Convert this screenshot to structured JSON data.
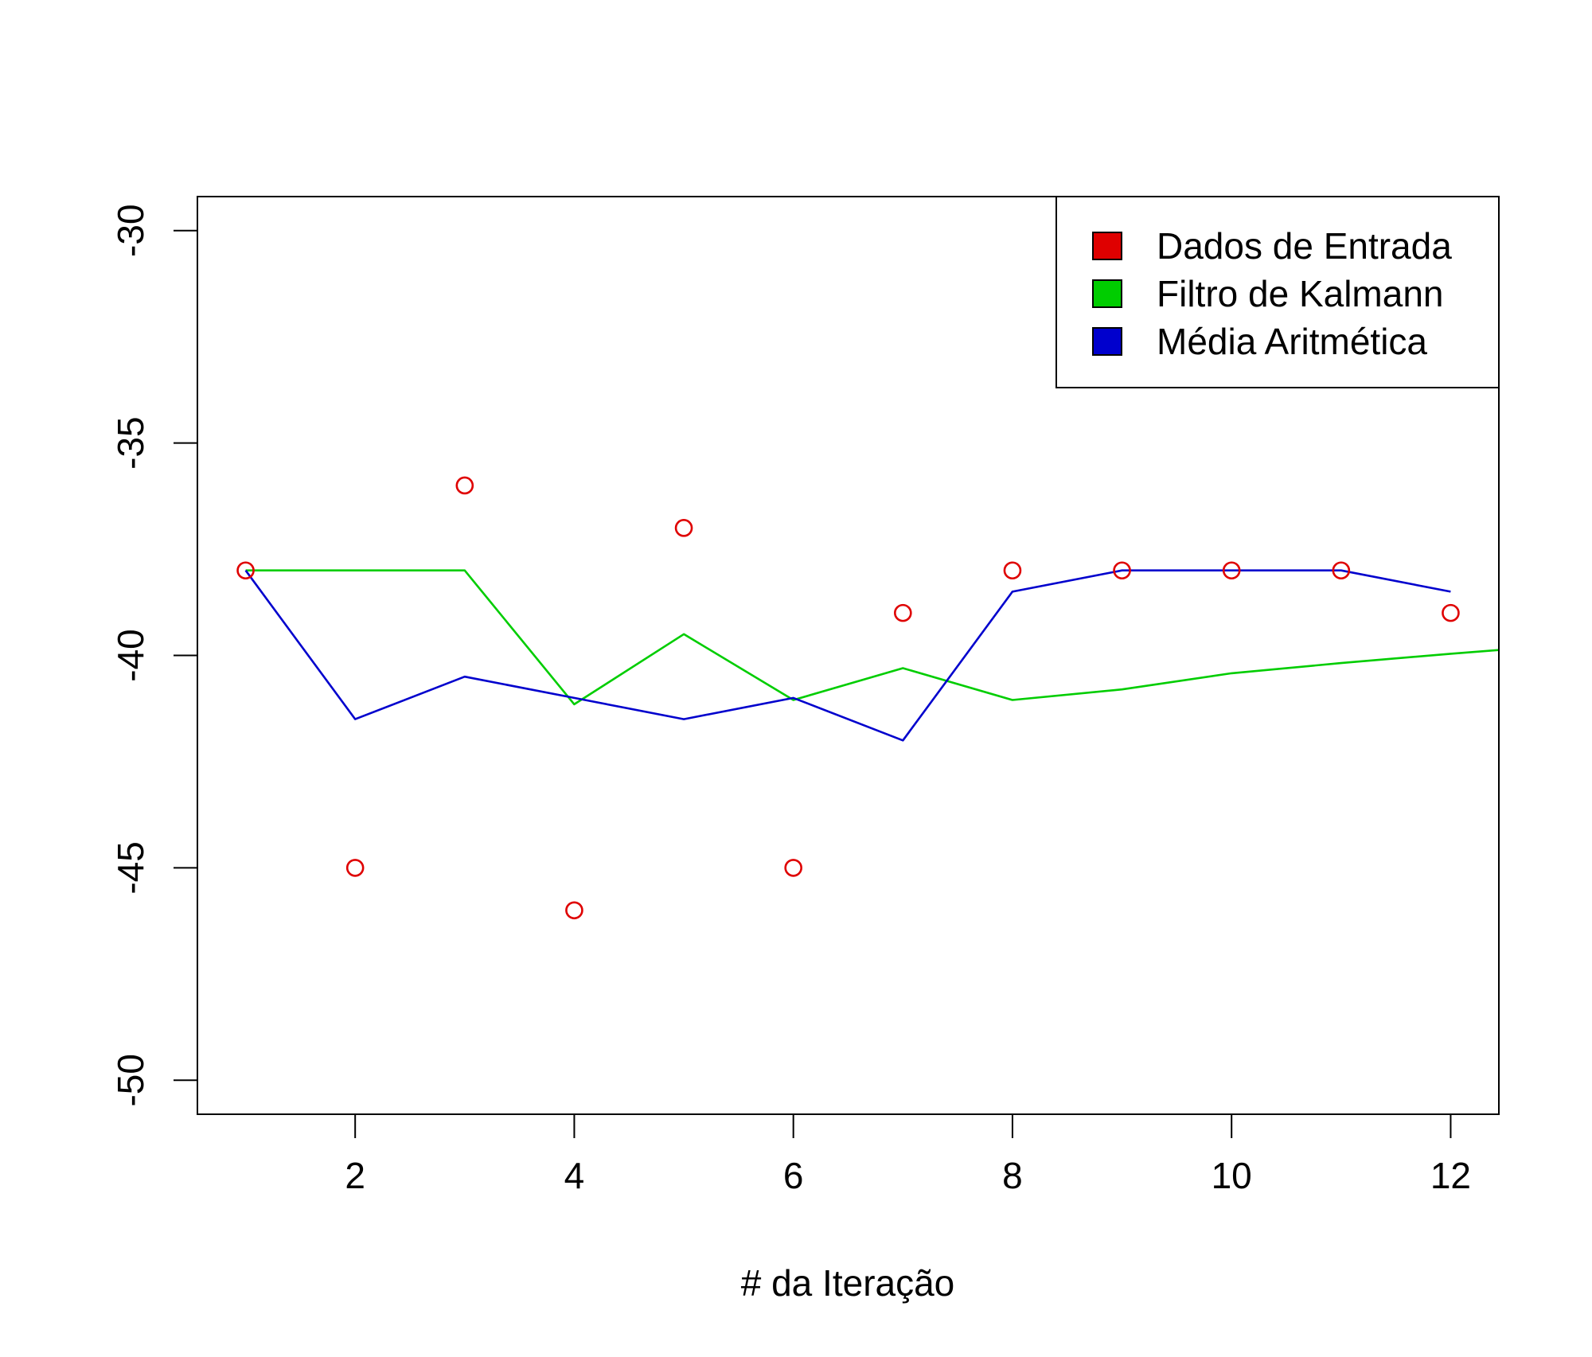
{
  "chart_data": {
    "type": "line",
    "title": "",
    "xlabel": "# da Iteração",
    "ylabel": "",
    "xlim": [
      0.56,
      12.44
    ],
    "ylim": [
      -50.8,
      -29.2
    ],
    "x_ticks": [
      2,
      4,
      6,
      8,
      10,
      12
    ],
    "y_ticks": [
      -50,
      -45,
      -40,
      -35,
      -30
    ],
    "x_tick_labels": [
      "2",
      "4",
      "6",
      "8",
      "10",
      "12"
    ],
    "y_tick_labels": [
      "-50",
      "-45",
      "-40",
      "-35",
      "-30"
    ],
    "grid": false,
    "legend_position": "top-right",
    "series": [
      {
        "name": "Dados de Entrada",
        "kind": "points",
        "color": "#DF0000",
        "x": [
          1,
          2,
          3,
          4,
          5,
          6,
          7,
          8,
          9,
          10,
          11,
          12
        ],
        "values": [
          -38,
          -45,
          -36,
          -46,
          -37,
          -45,
          -39,
          -38,
          -38,
          -38,
          -38,
          -39
        ]
      },
      {
        "name": "Filtro de Kalmann",
        "kind": "line",
        "color": "#00CD00",
        "x": [
          1,
          2,
          3,
          4,
          5,
          6,
          7,
          8,
          9,
          10,
          11,
          12,
          13
        ],
        "values": [
          -38,
          -38,
          -38,
          -41.15,
          -39.5,
          -41.05,
          -40.3,
          -41.05,
          -40.8,
          -40.42,
          -40.18,
          -39.96,
          -39.76
        ]
      },
      {
        "name": "Média Aritmética",
        "kind": "line",
        "color": "#0000CD",
        "x": [
          1,
          2,
          3,
          4,
          5,
          6,
          7,
          8,
          9,
          10,
          11,
          12
        ],
        "values": [
          -38,
          -41.5,
          -40.5,
          -41,
          -41.5,
          -41,
          -42,
          -38.5,
          -38,
          -38,
          -38,
          -38.5
        ]
      }
    ]
  }
}
